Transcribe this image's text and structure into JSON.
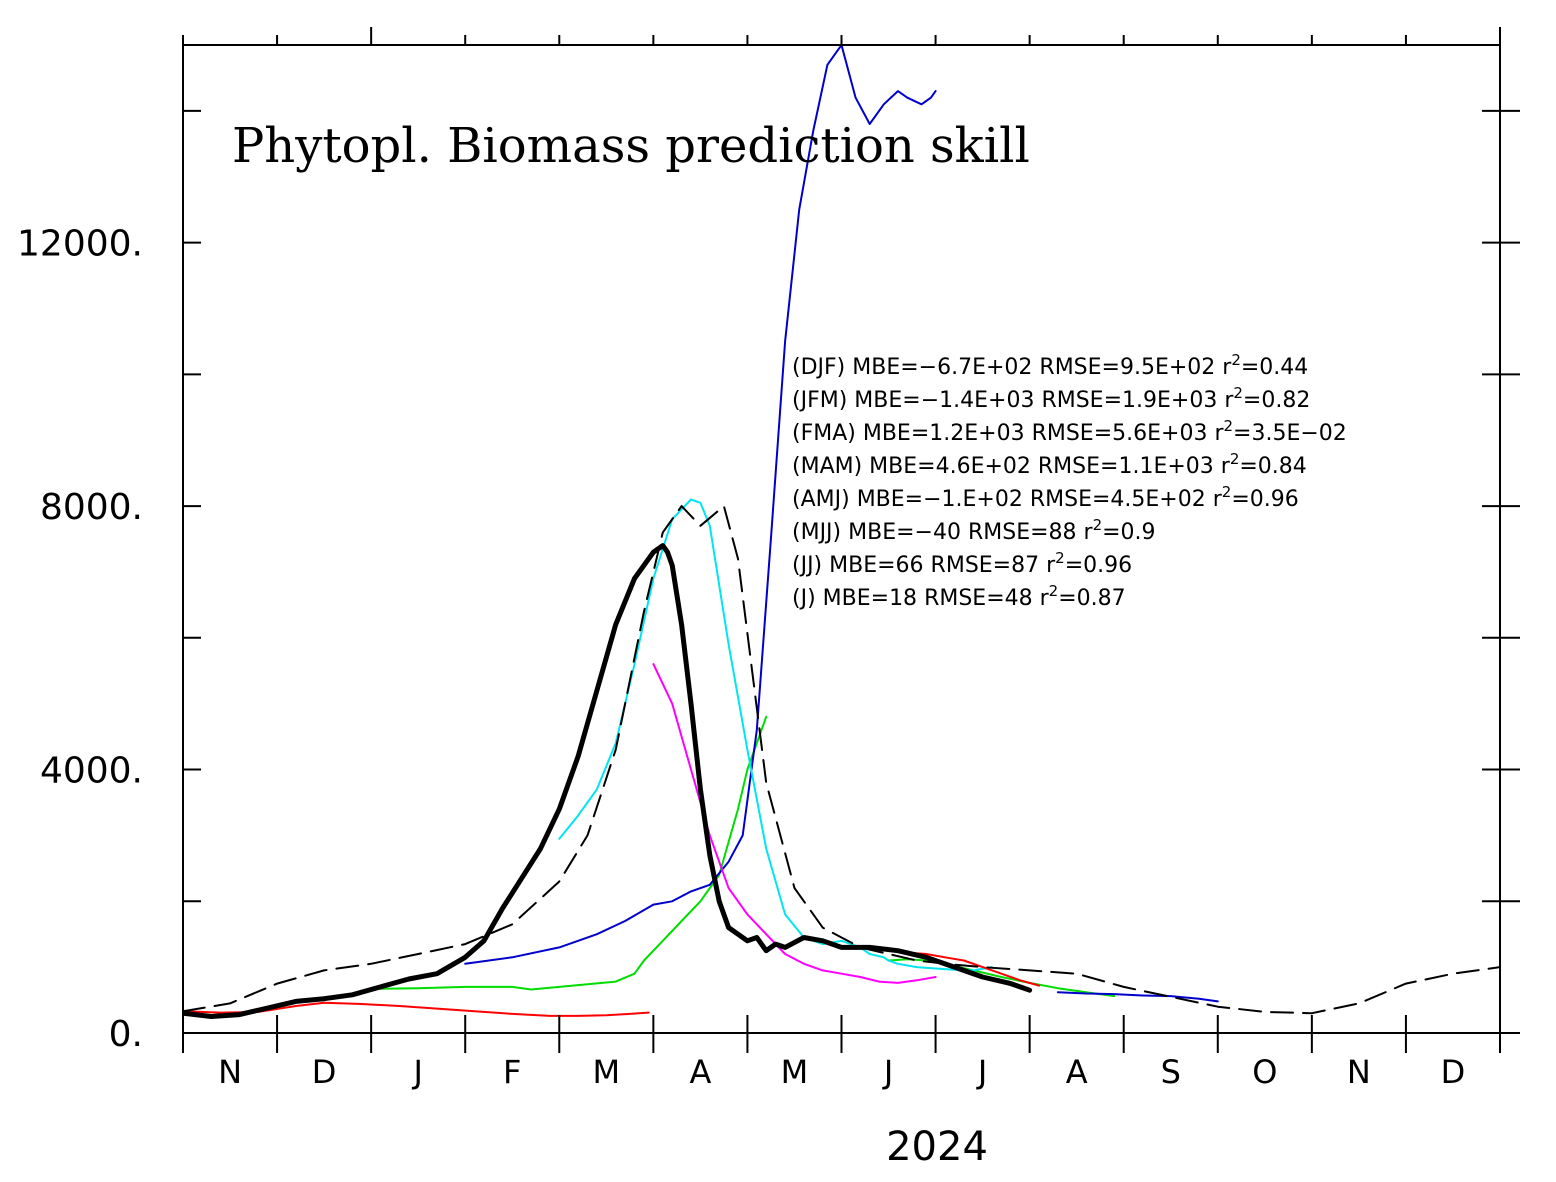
{
  "chart_data": {
    "type": "line",
    "title": "Phytopl. Biomass prediction skill",
    "xlabel": "2024",
    "ylabel": "",
    "ylim": [
      0,
      15000
    ],
    "xlim": [
      0,
      14
    ],
    "x_unit": "months from start of November 2023",
    "yticks": [
      {
        "value": 0,
        "label": "0."
      },
      {
        "value": 2000,
        "label": ""
      },
      {
        "value": 4000,
        "label": "4000."
      },
      {
        "value": 6000,
        "label": ""
      },
      {
        "value": 8000,
        "label": "8000."
      },
      {
        "value": 10000,
        "label": ""
      },
      {
        "value": 12000,
        "label": "12000."
      },
      {
        "value": 14000,
        "label": ""
      }
    ],
    "xticks": [
      0,
      1,
      2,
      3,
      4,
      5,
      6,
      7,
      8,
      9,
      10,
      11,
      12,
      13,
      14
    ],
    "month_labels": [
      {
        "x": 0.5,
        "label": "N"
      },
      {
        "x": 1.5,
        "label": "D"
      },
      {
        "x": 2.5,
        "label": "J"
      },
      {
        "x": 3.5,
        "label": "F"
      },
      {
        "x": 4.5,
        "label": "M"
      },
      {
        "x": 5.5,
        "label": "A"
      },
      {
        "x": 6.5,
        "label": "M"
      },
      {
        "x": 7.5,
        "label": "J"
      },
      {
        "x": 8.5,
        "label": "J"
      },
      {
        "x": 9.5,
        "label": "A"
      },
      {
        "x": 10.5,
        "label": "S"
      },
      {
        "x": 11.5,
        "label": "O"
      },
      {
        "x": 12.5,
        "label": "N"
      },
      {
        "x": 13.5,
        "label": "D"
      }
    ],
    "major_ticks": [
      2,
      14
    ],
    "stats": [
      {
        "label": "(DJF)",
        "mbe": "MBE=−6.7E+02",
        "rmse": "RMSE=9.5E+02",
        "r2": "=0.44"
      },
      {
        "label": "(JFM)",
        "mbe": "MBE=−1.4E+03",
        "rmse": "RMSE=1.9E+03",
        "r2": "=0.82"
      },
      {
        "label": "(FMA)",
        "mbe": "MBE=1.2E+03",
        "rmse": "RMSE=5.6E+03",
        "r2": "=3.5E−02"
      },
      {
        "label": "(MAM)",
        "mbe": "MBE=4.6E+02",
        "rmse": "RMSE=1.1E+03",
        "r2": "=0.84"
      },
      {
        "label": "(AMJ)",
        "mbe": "MBE=−1.E+02",
        "rmse": "RMSE=4.5E+02",
        "r2": "=0.96"
      },
      {
        "label": "(MJJ)",
        "mbe": "MBE=−40",
        "rmse": "RMSE=88",
        "r2": "=0.9"
      },
      {
        "label": "(JJ)",
        "mbe": "MBE=66",
        "rmse": "RMSE=87",
        "r2": "=0.96"
      },
      {
        "label": "(J)",
        "mbe": "MBE=18",
        "rmse": "RMSE=48",
        "r2": "=0.87"
      }
    ],
    "series": [
      {
        "color": "#ff0000",
        "style": "solid",
        "weight": "thin",
        "x": [
          0,
          0.4,
          0.8,
          1.2,
          1.5,
          1.9,
          2.3,
          2.7,
          3.1,
          3.5,
          3.9,
          4.2,
          4.5,
          4.75,
          4.95
        ],
        "y": [
          330,
          310,
          320,
          410,
          460,
          440,
          410,
          370,
          330,
          290,
          260,
          260,
          270,
          290,
          310
        ]
      },
      {
        "color": "#00dd00",
        "style": "solid",
        "weight": "thin",
        "x": [
          2.0,
          2.5,
          3.0,
          3.5,
          3.7,
          4.0,
          4.3,
          4.6,
          4.8,
          4.9,
          5.1,
          5.3,
          5.5,
          5.7,
          5.8,
          5.9,
          6.0,
          6.2
        ],
        "y": [
          670,
          680,
          700,
          700,
          660,
          700,
          740,
          780,
          900,
          1100,
          1400,
          1700,
          2000,
          2400,
          2900,
          3400,
          4000,
          4800
        ]
      },
      {
        "color": "#00dd00",
        "style": "solid",
        "weight": "thin",
        "x": [
          7.5,
          7.7,
          7.9,
          8.1,
          8.4,
          8.7,
          9.0,
          9.3,
          9.6,
          9.9
        ],
        "y": [
          1100,
          1120,
          1100,
          1050,
          950,
          850,
          760,
          680,
          620,
          560
        ]
      },
      {
        "color": "#0000cc",
        "style": "solid",
        "weight": "thin",
        "x": [
          3.0,
          3.5,
          4.0,
          4.4,
          4.7,
          5.0,
          5.2,
          5.4,
          5.6,
          5.8,
          5.95,
          6.1,
          6.25,
          6.4,
          6.55,
          6.7,
          6.85,
          7.0,
          7.15,
          7.3,
          7.45,
          7.6,
          7.7,
          7.85,
          7.9,
          7.95,
          8.0
        ],
        "y": [
          1050,
          1150,
          1300,
          1500,
          1700,
          1950,
          2000,
          2150,
          2250,
          2600,
          3000,
          4600,
          7500,
          10500,
          12500,
          13700,
          14700,
          15000,
          14200,
          13800,
          14100,
          14300,
          14200,
          14100,
          14150,
          14200,
          14300
        ]
      },
      {
        "color": "#0000cc",
        "style": "solid",
        "weight": "thin",
        "x": [
          9.3,
          9.6,
          9.9,
          10.2,
          10.5,
          10.8,
          11.0
        ],
        "y": [
          620,
          600,
          590,
          570,
          560,
          520,
          480
        ]
      },
      {
        "color": "#00e5ee",
        "style": "solid",
        "weight": "thin",
        "x": [
          4.0,
          4.2,
          4.4,
          4.6,
          4.8,
          5.0,
          5.2,
          5.4,
          5.5,
          5.6,
          5.7,
          5.8,
          5.9,
          6.0,
          6.2,
          6.4,
          6.6,
          6.8,
          7.0,
          7.2,
          7.3,
          7.45,
          7.5,
          7.6,
          7.8,
          8.0,
          8.2,
          8.4,
          8.6
        ],
        "y": [
          2950,
          3300,
          3700,
          4400,
          5600,
          6900,
          7800,
          8100,
          8050,
          7700,
          6800,
          5900,
          5100,
          4300,
          2800,
          1800,
          1450,
          1350,
          1400,
          1300,
          1200,
          1150,
          1100,
          1050,
          1000,
          980,
          960,
          950,
          1000
        ]
      },
      {
        "color": "#ff00ff",
        "style": "solid",
        "weight": "thin",
        "x": [
          5.0,
          5.2,
          5.4,
          5.6,
          5.8,
          6.0,
          6.2,
          6.4,
          6.6,
          6.8,
          7.0,
          7.2,
          7.4,
          7.6,
          7.8,
          8.0
        ],
        "y": [
          5600,
          5000,
          4000,
          3000,
          2200,
          1800,
          1500,
          1200,
          1050,
          950,
          900,
          850,
          780,
          760,
          800,
          850
        ]
      },
      {
        "color": "#ff0000",
        "style": "solid",
        "weight": "thin",
        "x": [
          7.5,
          7.7,
          7.9,
          8.1,
          8.3,
          8.5,
          8.7,
          8.9,
          9.1
        ],
        "y": [
          1250,
          1220,
          1200,
          1150,
          1100,
          1000,
          900,
          800,
          720
        ]
      },
      {
        "color": "#000000",
        "style": "dashed",
        "weight": "thin",
        "x": [
          0,
          0.5,
          1.0,
          1.5,
          2.0,
          2.5,
          3.0,
          3.5,
          4.0,
          4.3,
          4.6,
          4.9,
          5.1,
          5.3,
          5.5,
          5.75,
          5.9,
          6.05,
          6.2,
          6.5,
          6.8,
          7.0,
          7.2,
          7.5,
          7.8,
          8.1,
          8.5,
          9.0,
          9.5,
          10.0,
          10.5,
          11.0,
          11.5,
          12.0,
          12.5,
          13.0,
          13.5,
          14.0
        ],
        "y": [
          330,
          450,
          750,
          950,
          1050,
          1200,
          1350,
          1650,
          2300,
          3000,
          4300,
          6400,
          7600,
          8000,
          7700,
          8000,
          7200,
          5500,
          3800,
          2200,
          1600,
          1450,
          1300,
          1200,
          1100,
          1050,
          1000,
          950,
          900,
          700,
          550,
          400,
          320,
          300,
          450,
          750,
          900,
          1000
        ]
      },
      {
        "color": "#000000",
        "style": "solid",
        "weight": "thick",
        "x": [
          0,
          0.3,
          0.6,
          0.9,
          1.2,
          1.5,
          1.8,
          2.1,
          2.4,
          2.7,
          3.0,
          3.2,
          3.4,
          3.6,
          3.8,
          4.0,
          4.2,
          4.4,
          4.6,
          4.8,
          5.0,
          5.1,
          5.15,
          5.2,
          5.3,
          5.4,
          5.5,
          5.6,
          5.7,
          5.8,
          5.9,
          6.0,
          6.1,
          6.2,
          6.3,
          6.4,
          6.6,
          6.8,
          7.0,
          7.3,
          7.6,
          7.9,
          8.2,
          8.5,
          8.8,
          9.0
        ],
        "y": [
          300,
          250,
          280,
          380,
          480,
          520,
          580,
          700,
          820,
          900,
          1150,
          1400,
          1900,
          2350,
          2800,
          3400,
          4200,
          5200,
          6200,
          6900,
          7300,
          7400,
          7300,
          7100,
          6200,
          5000,
          3700,
          2700,
          2000,
          1600,
          1500,
          1400,
          1450,
          1250,
          1350,
          1300,
          1450,
          1400,
          1300,
          1300,
          1250,
          1150,
          1000,
          850,
          750,
          650
        ]
      }
    ]
  }
}
